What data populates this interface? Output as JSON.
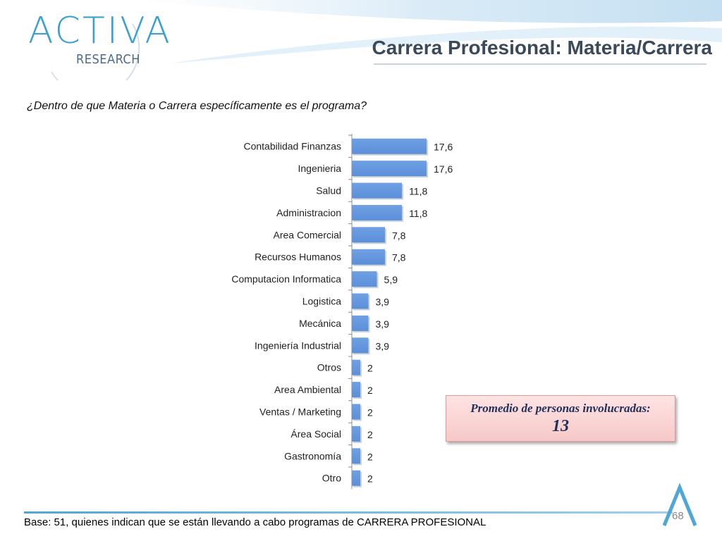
{
  "logo": {
    "word": "ACTIVA",
    "sub": "RESEARCH"
  },
  "title": "Carrera Profesional: Materia/Carrera",
  "question": "¿Dentro de que Materia o Carrera específicamente es el programa?",
  "callout": {
    "label": "Promedio de personas involucradas:",
    "value": "13"
  },
  "footer": {
    "base": "Base: 51, quienes indican que se están llevando a cabo programas de CARRERA PROFESIONAL",
    "page": "68"
  },
  "colors": {
    "bar": "#5b8fd8",
    "accent": "#3a9fd1"
  },
  "chart_data": {
    "type": "bar",
    "orientation": "horizontal",
    "categories": [
      "Contabilidad Finanzas",
      "Ingenieria",
      "Salud",
      "Administracion",
      "Area Comercial",
      "Recursos Humanos",
      "Computacion Informatica",
      "Logistica",
      "Mecánica",
      "Ingeniería Industrial",
      "Otros",
      "Area Ambiental",
      "Ventas / Marketing",
      "Área Social",
      "Gastronomía",
      "Otro"
    ],
    "values": [
      17.6,
      17.6,
      11.8,
      11.8,
      7.8,
      7.8,
      5.9,
      3.9,
      3.9,
      3.9,
      2,
      2,
      2,
      2,
      2,
      2
    ],
    "value_labels": [
      "17,6",
      "17,6",
      "11,8",
      "11,8",
      "7,8",
      "7,8",
      "5,9",
      "3,9",
      "3,9",
      "3,9",
      "2",
      "2",
      "2",
      "2",
      "2",
      "2"
    ],
    "xlim": [
      0,
      17.6
    ],
    "grid": false,
    "legend": "none"
  }
}
